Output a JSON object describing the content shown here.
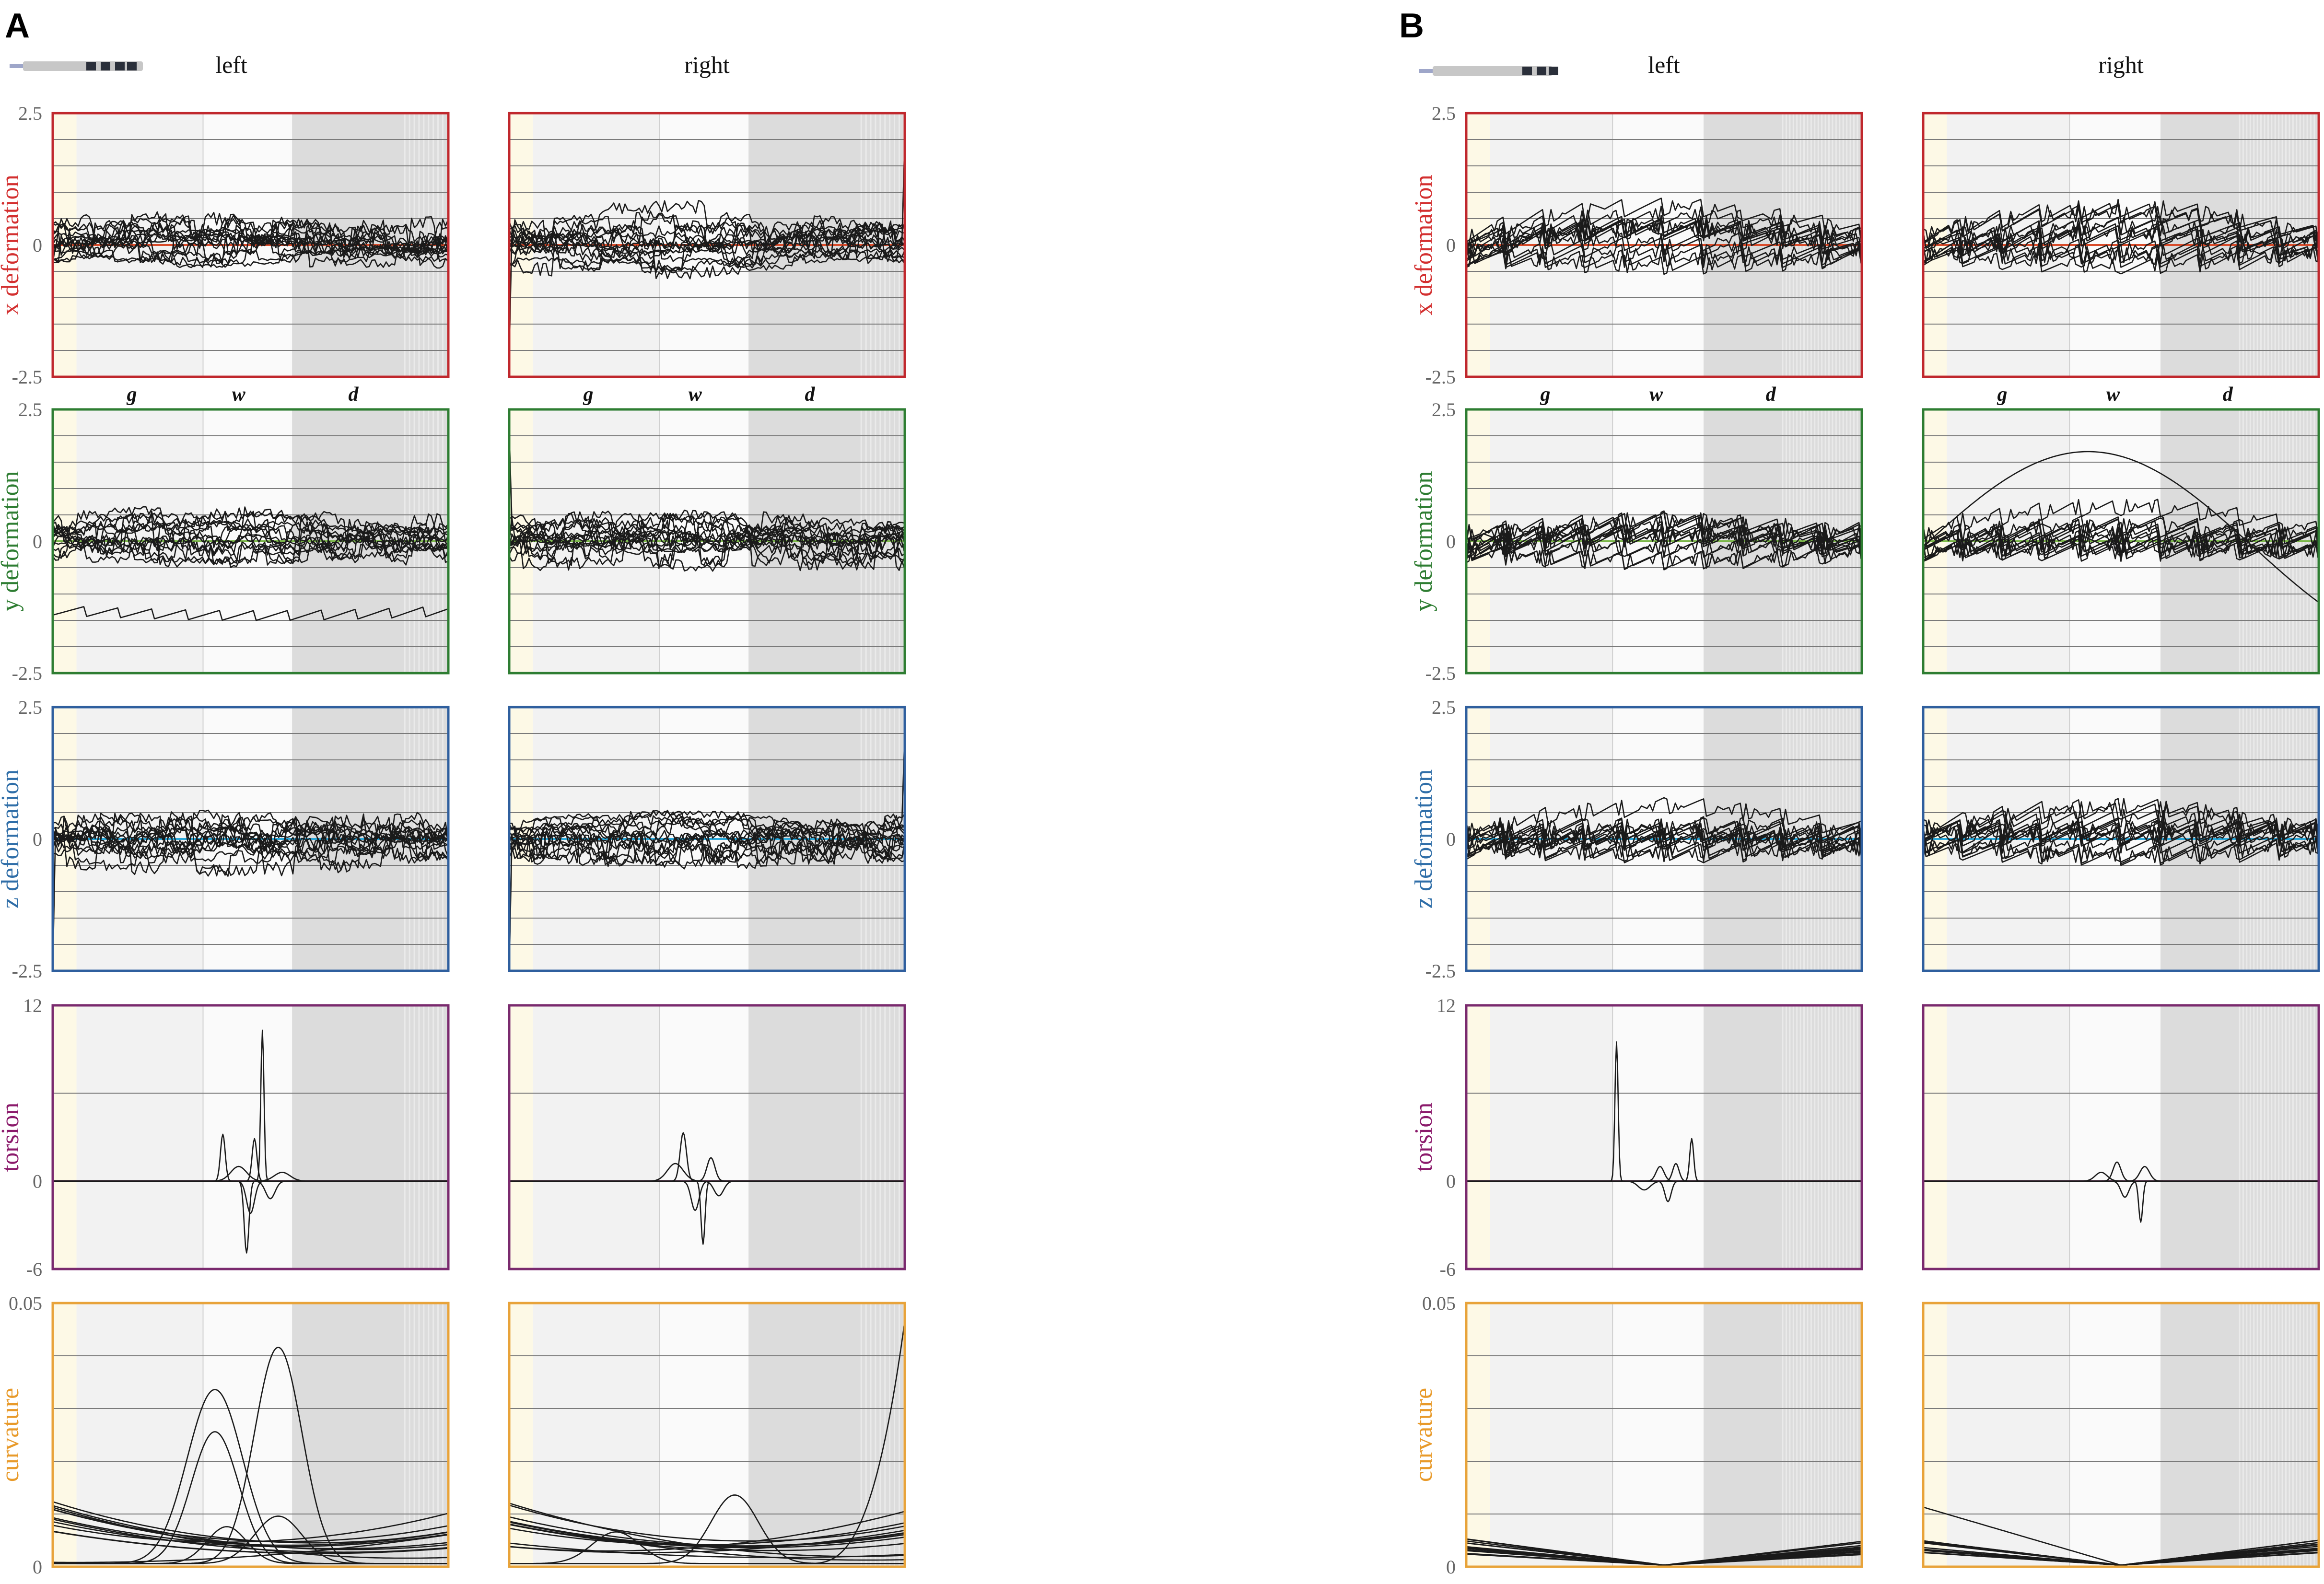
{
  "figure": {
    "panels": [
      {
        "letter": "A",
        "col_titles": [
          "left",
          "right"
        ],
        "region_labels": [
          "g",
          "w",
          "d"
        ]
      },
      {
        "letter": "B",
        "col_titles": [
          "left",
          "right"
        ],
        "region_labels": [
          "g",
          "w",
          "d"
        ]
      }
    ]
  },
  "colors": {
    "x": "#c0282d",
    "y": "#2e7d32",
    "z": "#2f5f9e",
    "torsion": "#7a2a6e",
    "curvature": "#e8a33a",
    "x_label": "#d32f2f",
    "y_label": "#2e7d32",
    "z_label": "#2f6ea8",
    "torsion_label": "#8b1a6b",
    "curvature_label": "#e89a2a",
    "x_ref": "#d84b2a",
    "y_ref": "#7ab648",
    "z_ref": "#2aa7d9",
    "torsion_ref": "#c050a0",
    "curvature_ref": "#f0a030",
    "trace": "#1a1a1a",
    "grid": "#7a7a7a",
    "tick": "#666666"
  },
  "chart_data": [
    {
      "type": "line",
      "panel": "A",
      "side": "left",
      "row": "x",
      "ylabel": "x deformation",
      "ylim": [
        -2.5,
        2.5
      ],
      "yticks": [
        "2.5",
        "0",
        "-2.5"
      ],
      "shape": "zigzag",
      "series_count": 16
    },
    {
      "type": "line",
      "panel": "A",
      "side": "right",
      "row": "x",
      "ylabel": "x deformation",
      "ylim": [
        -2.5,
        2.5
      ],
      "yticks": [
        "2.5",
        "0",
        "-2.5"
      ],
      "shape": "zigzag",
      "series_count": 16,
      "end_spike": 2.0,
      "start_spike": -2.1
    },
    {
      "type": "line",
      "panel": "A",
      "side": "left",
      "row": "y",
      "ylabel": "y deformation",
      "ylim": [
        -2.5,
        2.5
      ],
      "yticks": [
        "2.5",
        "0",
        "-2.5"
      ],
      "shape": "zigzag",
      "series_count": 16,
      "offset_trace": -1.4
    },
    {
      "type": "line",
      "panel": "A",
      "side": "right",
      "row": "y",
      "ylabel": "y deformation",
      "ylim": [
        -2.5,
        2.5
      ],
      "yticks": [
        "2.5",
        "0",
        "-2.5"
      ],
      "shape": "zigzag",
      "series_count": 16,
      "start_spike": 2.1
    },
    {
      "type": "line",
      "panel": "A",
      "side": "left",
      "row": "z",
      "ylabel": "z deformation",
      "ylim": [
        -2.5,
        2.5
      ],
      "yticks": [
        "2.5",
        "0",
        "-2.5"
      ],
      "shape": "zigzag",
      "series_count": 16,
      "start_spike": -2.5
    },
    {
      "type": "line",
      "panel": "A",
      "side": "right",
      "row": "z",
      "ylabel": "z deformation",
      "ylim": [
        -2.5,
        2.5
      ],
      "yticks": [
        "2.5",
        "0",
        "-2.5"
      ],
      "shape": "zigzag",
      "series_count": 16,
      "end_spike": 2.0,
      "start_spike": -2.5
    },
    {
      "type": "line",
      "panel": "A",
      "side": "left",
      "row": "torsion",
      "ylabel": "torsion",
      "ylim": [
        -6,
        12
      ],
      "yticks": [
        "12",
        "0",
        "-6"
      ],
      "shape": "peaks",
      "peaks": [
        [
          0.43,
          3.2,
          0.006
        ],
        [
          0.51,
          2.9,
          0.006
        ],
        [
          0.53,
          10.3,
          0.004
        ],
        [
          0.49,
          -4.9,
          0.006
        ],
        [
          0.5,
          -2.2,
          0.01
        ],
        [
          0.55,
          -1.2,
          0.012
        ],
        [
          0.47,
          1.0,
          0.02
        ],
        [
          0.58,
          0.6,
          0.02
        ]
      ]
    },
    {
      "type": "line",
      "panel": "A",
      "side": "right",
      "row": "torsion",
      "ylabel": "torsion",
      "ylim": [
        -6,
        12
      ],
      "yticks": [
        "12",
        "0",
        "-6"
      ],
      "shape": "peaks",
      "peaks": [
        [
          0.44,
          3.3,
          0.008
        ],
        [
          0.49,
          -4.3,
          0.005
        ],
        [
          0.51,
          1.6,
          0.01
        ],
        [
          0.47,
          -2.0,
          0.01
        ],
        [
          0.53,
          -1.0,
          0.012
        ],
        [
          0.42,
          1.2,
          0.02
        ]
      ]
    },
    {
      "type": "line",
      "panel": "A",
      "side": "left",
      "row": "curvature",
      "ylabel": "curvature",
      "ylim": [
        0,
        0.05
      ],
      "yticks": [
        "0.05",
        "0"
      ],
      "shape": "bumps",
      "bumps": [
        [
          0.41,
          0.033,
          0.07
        ],
        [
          0.41,
          0.025,
          0.06
        ],
        [
          0.57,
          0.041,
          0.06
        ],
        [
          0.57,
          0.009,
          0.06
        ],
        [
          0.44,
          0.007,
          0.05
        ]
      ],
      "base_count": 12
    },
    {
      "type": "line",
      "panel": "A",
      "side": "right",
      "row": "curvature",
      "ylabel": "curvature",
      "ylim": [
        0,
        0.05
      ],
      "yticks": [
        "0.05",
        "0"
      ],
      "shape": "bumps",
      "bumps": [
        [
          0.27,
          0.006,
          0.06
        ],
        [
          0.57,
          0.013,
          0.06
        ]
      ],
      "end_rise": 0.046,
      "base_count": 12
    },
    {
      "type": "line",
      "panel": "B",
      "side": "left",
      "row": "x",
      "ylabel": "x deformation",
      "ylim": [
        -2.5,
        2.5
      ],
      "yticks": [
        "2.5",
        "0",
        "-2.5"
      ],
      "shape": "steps",
      "series_count": 14
    },
    {
      "type": "line",
      "panel": "B",
      "side": "right",
      "row": "x",
      "ylabel": "x deformation",
      "ylim": [
        -2.5,
        2.5
      ],
      "yticks": [
        "2.5",
        "0",
        "-2.5"
      ],
      "shape": "steps",
      "series_count": 14
    },
    {
      "type": "line",
      "panel": "B",
      "side": "left",
      "row": "y",
      "ylabel": "y deformation",
      "ylim": [
        -2.5,
        2.5
      ],
      "yticks": [
        "2.5",
        "0",
        "-2.5"
      ],
      "shape": "steps",
      "series_count": 14
    },
    {
      "type": "line",
      "panel": "B",
      "side": "right",
      "row": "y",
      "ylabel": "y deformation",
      "ylim": [
        -2.5,
        2.5
      ],
      "yticks": [
        "2.5",
        "0",
        "-2.5"
      ],
      "shape": "steps",
      "series_count": 14,
      "arc_peak": 1.8
    },
    {
      "type": "line",
      "panel": "B",
      "side": "left",
      "row": "z",
      "ylabel": "z deformation",
      "ylim": [
        -2.5,
        2.5
      ],
      "yticks": [
        "2.5",
        "0",
        "-2.5"
      ],
      "shape": "steps",
      "series_count": 14
    },
    {
      "type": "line",
      "panel": "B",
      "side": "right",
      "row": "z",
      "ylabel": "z deformation",
      "ylim": [
        -2.5,
        2.5
      ],
      "yticks": [
        "2.5",
        "0",
        "-2.5"
      ],
      "shape": "steps",
      "series_count": 14
    },
    {
      "type": "line",
      "panel": "B",
      "side": "left",
      "row": "torsion",
      "ylabel": "torsion",
      "ylim": [
        -6,
        12
      ],
      "yticks": [
        "12",
        "0",
        "-6"
      ],
      "shape": "peaks",
      "peaks": [
        [
          0.38,
          9.5,
          0.004
        ],
        [
          0.57,
          2.9,
          0.005
        ],
        [
          0.49,
          1.0,
          0.01
        ],
        [
          0.51,
          -1.4,
          0.008
        ],
        [
          0.53,
          1.2,
          0.008
        ],
        [
          0.45,
          -0.6,
          0.015
        ]
      ]
    },
    {
      "type": "line",
      "panel": "B",
      "side": "right",
      "row": "torsion",
      "ylabel": "torsion",
      "ylim": [
        -6,
        12
      ],
      "yticks": [
        "12",
        "0",
        "-6"
      ],
      "shape": "peaks",
      "peaks": [
        [
          0.49,
          1.3,
          0.01
        ],
        [
          0.56,
          1.0,
          0.012
        ],
        [
          0.55,
          -2.8,
          0.005
        ],
        [
          0.51,
          -1.1,
          0.01
        ],
        [
          0.45,
          0.6,
          0.015
        ]
      ]
    },
    {
      "type": "line",
      "panel": "B",
      "side": "left",
      "row": "curvature",
      "ylabel": "curvature",
      "ylim": [
        0,
        0.05
      ],
      "yticks": [
        "0.05",
        "0"
      ],
      "shape": "vshape",
      "base_count": 14
    },
    {
      "type": "line",
      "panel": "B",
      "side": "right",
      "row": "curvature",
      "ylabel": "curvature",
      "ylim": [
        0,
        0.05
      ],
      "yticks": [
        "0.05",
        "0"
      ],
      "shape": "vshape",
      "base_count": 14,
      "left_spike": 0.011
    }
  ]
}
